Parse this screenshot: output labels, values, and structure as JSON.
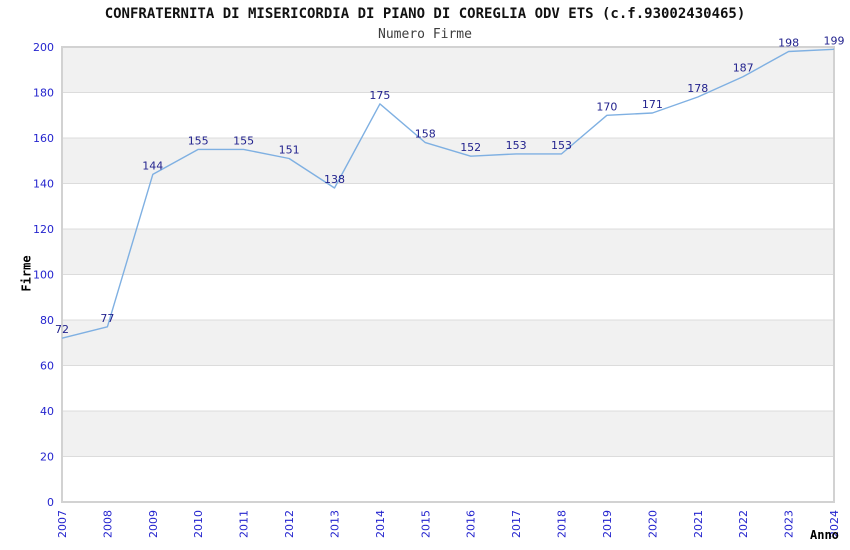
{
  "chart_data": {
    "type": "line",
    "title": "CONFRATERNITA DI MISERICORDIA DI PIANO DI COREGLIA ODV ETS (c.f.93002430465)",
    "subtitle": "Numero Firme",
    "xlabel": "Anno",
    "ylabel": "Firme",
    "x": [
      2007,
      2008,
      2009,
      2010,
      2011,
      2012,
      2013,
      2014,
      2015,
      2016,
      2017,
      2018,
      2019,
      2020,
      2021,
      2022,
      2023,
      2024
    ],
    "series": [
      {
        "name": "Numero Firme",
        "values": [
          72,
          77,
          144,
          155,
          155,
          151,
          138,
          175,
          158,
          152,
          153,
          153,
          170,
          171,
          178,
          187,
          198,
          199
        ]
      }
    ],
    "data_labels": true,
    "markers": false,
    "legend": "none",
    "ylim": [
      0,
      200
    ],
    "ytick_step": 20,
    "grid": "horizontal-bands-alternating",
    "style": {
      "line_color": "#7fb0e2",
      "data_label_color": "#23238e",
      "tick_label_color": "#2424ce",
      "band_color": "#f1f1f1",
      "grid_color": "#dcdcdc",
      "border_color": "#d2d2d2",
      "title_color": "#111111",
      "subtitle_color": "#3d3d3d"
    }
  }
}
